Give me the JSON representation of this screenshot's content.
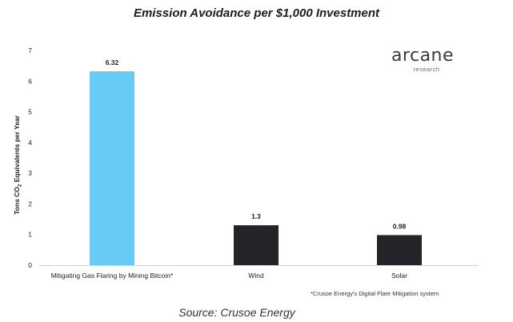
{
  "chart_data": {
    "type": "bar",
    "title": "Emission Avoidance per $1,000 Investment",
    "ylabel_prefix": "Tons CO",
    "ylabel_sub": "2",
    "ylabel_suffix": " Equivalents per Year",
    "categories": [
      "Mitigating Gas Flaring by Mining Bitcoin*",
      "Wind",
      "Solar"
    ],
    "values": [
      6.32,
      1.3,
      0.98
    ],
    "value_labels": [
      "6.32",
      "1.3",
      "0.98"
    ],
    "ylim": [
      0,
      7
    ],
    "yticks": [
      0,
      1,
      2,
      3,
      4,
      5,
      6,
      7
    ],
    "grid": false,
    "bar_colors": [
      "#66ccf5",
      "#222428",
      "#222428"
    ]
  },
  "logo": {
    "main": "arcane",
    "sub": "research"
  },
  "footnote": "*Crusoe Energy's Digital Flare Mitigation system",
  "source": "Source: Crusoe Energy"
}
